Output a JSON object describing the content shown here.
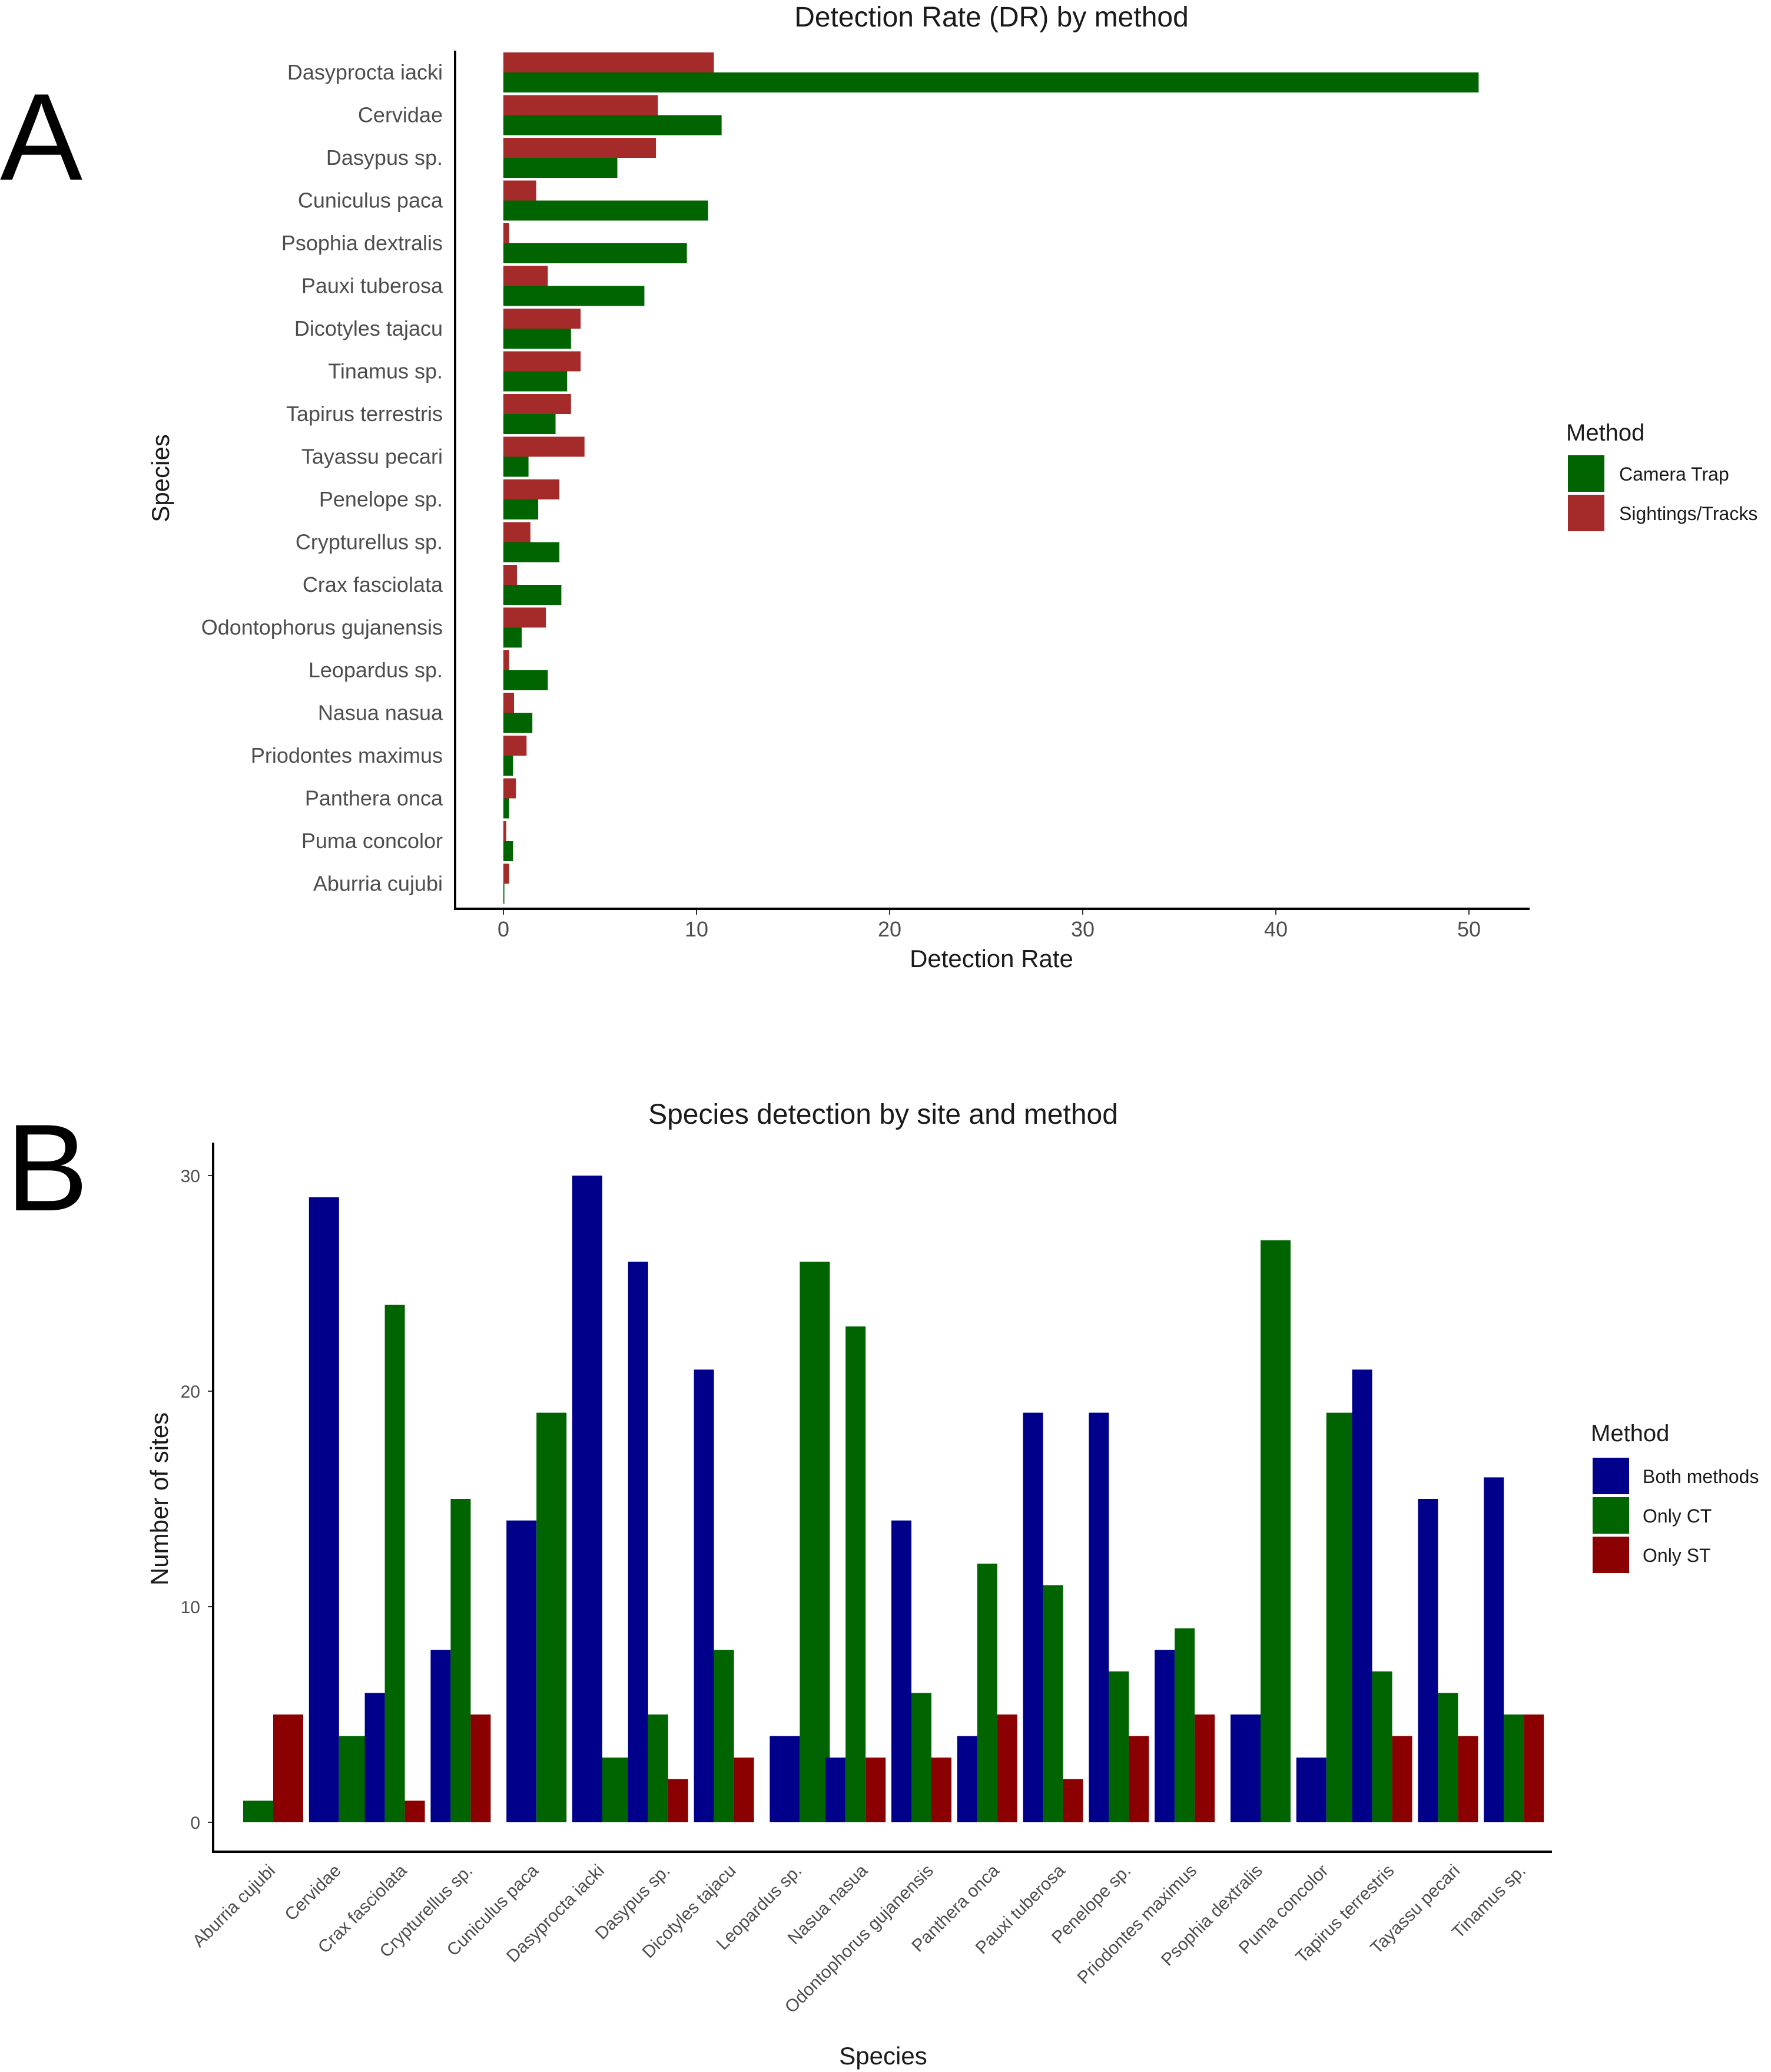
{
  "panels": {
    "a_label": "A",
    "b_label": "B"
  },
  "chart_data": [
    {
      "type": "bar",
      "orientation": "horizontal",
      "title": "Detection Rate (DR) by method",
      "xlabel": "Detection Rate",
      "ylabel": "Species",
      "xlim": [
        0,
        53
      ],
      "xticks": [
        "0",
        "10",
        "20",
        "30",
        "40",
        "50"
      ],
      "xtick_values": [
        0,
        10,
        20,
        30,
        40,
        50
      ],
      "grid": false,
      "legend": {
        "title": "Method",
        "position": "right"
      },
      "categories": [
        "Dasyprocta iacki",
        "Cervidae",
        "Dasypus sp.",
        "Cuniculus paca",
        "Psophia dextralis",
        "Pauxi tuberosa",
        "Dicotyles tajacu",
        "Tinamus sp.",
        "Tapirus terrestris",
        "Tayassu pecari",
        "Penelope sp.",
        "Crypturellus sp.",
        "Crax fasciolata",
        "Odontophorus gujanensis",
        "Leopardus sp.",
        "Nasua nasua",
        "Priodontes maximus",
        "Panthera onca",
        "Puma concolor",
        "Aburria cujubi"
      ],
      "series": [
        {
          "name": "Camera Trap",
          "color": "#006400",
          "values": [
            50.5,
            11.3,
            5.9,
            10.6,
            9.5,
            7.3,
            3.5,
            3.3,
            2.7,
            1.3,
            1.8,
            2.9,
            3.0,
            0.95,
            2.3,
            1.5,
            0.5,
            0.3,
            0.5,
            0.05
          ]
        },
        {
          "name": "Sightings/Tracks",
          "color": "#A52A2A",
          "values": [
            10.9,
            8.0,
            7.9,
            1.7,
            0.3,
            2.3,
            4.0,
            4.0,
            3.5,
            4.2,
            2.9,
            1.4,
            0.7,
            2.2,
            0.3,
            0.55,
            1.2,
            0.65,
            0.15,
            0.3
          ]
        }
      ]
    },
    {
      "type": "bar",
      "orientation": "vertical",
      "title": "Species detection by site and method",
      "xlabel": "Species",
      "ylabel": "Number of sites",
      "ylim": [
        0,
        31
      ],
      "yticks": [
        "0",
        "10",
        "20",
        "30"
      ],
      "ytick_values": [
        0,
        10,
        20,
        30
      ],
      "grid": false,
      "legend": {
        "title": "Method",
        "position": "right"
      },
      "categories": [
        "Aburria cujubi",
        "Cervidae",
        "Crax fasciolata",
        "Crypturellus sp.",
        "Cuniculus paca",
        "Dasyprocta iacki",
        "Dasypus sp.",
        "Dicotyles tajacu",
        "Leopardus sp.",
        "Nasua nasua",
        "Odontophorus gujanensis",
        "Panthera onca",
        "Pauxi tuberosa",
        "Penelope sp.",
        "Priodontes maximus",
        "Psophia dextralis",
        "Puma concolor",
        "Tapirus terrestris",
        "Tayassu pecari",
        "Tinamus sp."
      ],
      "series": [
        {
          "name": "Both methods",
          "color": "#00008B",
          "values": [
            0,
            29,
            6,
            8,
            14,
            30,
            26,
            21,
            4,
            3,
            14,
            4,
            19,
            19,
            8,
            5,
            3,
            21,
            15,
            16
          ]
        },
        {
          "name": "Only CT",
          "color": "#006400",
          "values": [
            1,
            4,
            24,
            15,
            19,
            3,
            5,
            8,
            26,
            23,
            6,
            12,
            11,
            7,
            9,
            27,
            19,
            7,
            6,
            5
          ]
        },
        {
          "name": "Only ST",
          "color": "#8B0000",
          "values": [
            5,
            0,
            1,
            5,
            0,
            0,
            2,
            3,
            0,
            3,
            3,
            5,
            2,
            4,
            5,
            0,
            0,
            4,
            4,
            5
          ]
        }
      ]
    }
  ]
}
